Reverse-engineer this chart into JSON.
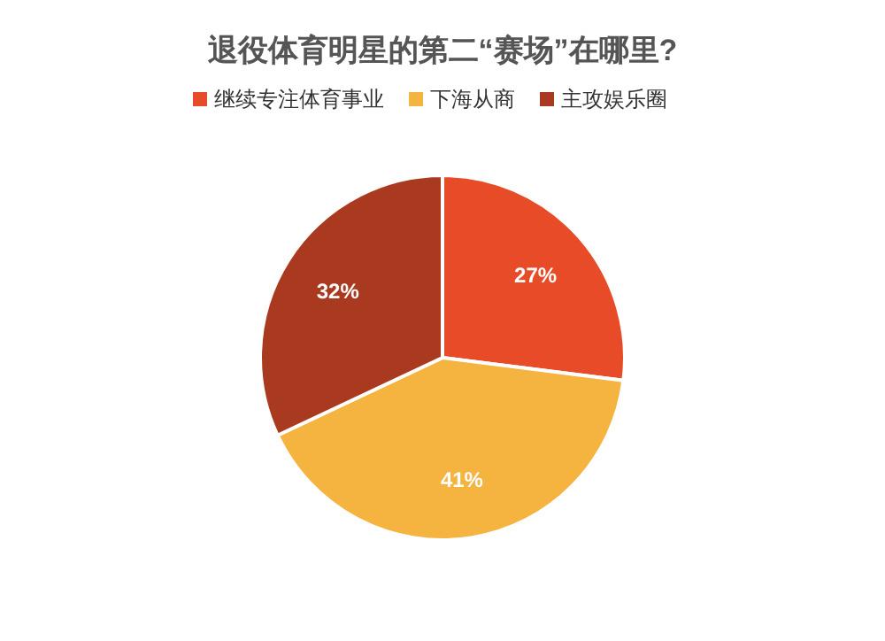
{
  "chart_data": {
    "type": "pie",
    "title": "退役体育明星的第二“赛场”在哪里?",
    "categories": [
      "继续专注体育事业",
      "下海从商",
      "主攻娱乐圈"
    ],
    "values": [
      27,
      41,
      32
    ],
    "colors": [
      "#e84b27",
      "#f5b440",
      "#a93a20"
    ],
    "value_labels": [
      "27%",
      "41%",
      "32%"
    ],
    "legend": "top"
  }
}
